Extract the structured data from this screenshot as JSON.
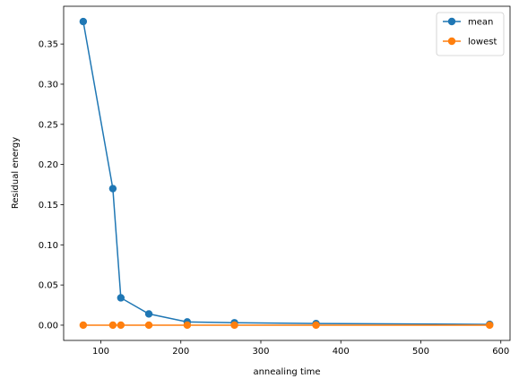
{
  "chart_data": {
    "type": "line",
    "xlabel": "annealing time",
    "ylabel": "Residual energy",
    "xlim": [
      53.5,
      611.5
    ],
    "ylim": [
      -0.019,
      0.397
    ],
    "xticks": [
      100,
      200,
      300,
      400,
      500,
      600
    ],
    "yticks": [
      0.0,
      0.05,
      0.1,
      0.15,
      0.2,
      0.25,
      0.3,
      0.35
    ],
    "grid": false,
    "legend_position": "top-right",
    "series": [
      {
        "name": "mean",
        "color": "#1f77b4",
        "x": [
          78,
          115,
          125,
          160,
          208,
          267,
          369,
          586
        ],
        "y": [
          0.378,
          0.17,
          0.034,
          0.014,
          0.004,
          0.003,
          0.002,
          0.001
        ]
      },
      {
        "name": "lowest",
        "color": "#ff7f0e",
        "x": [
          78,
          115,
          125,
          160,
          208,
          267,
          369,
          586
        ],
        "y": [
          0.0,
          0.0,
          0.0,
          0.0,
          0.0,
          0.0,
          0.0,
          0.0
        ]
      }
    ]
  }
}
